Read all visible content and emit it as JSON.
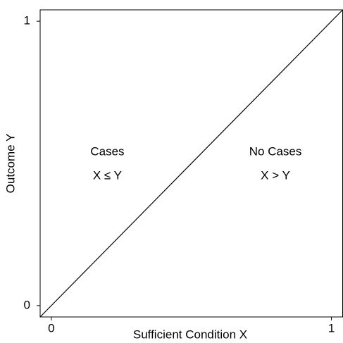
{
  "chart_data": {
    "type": "line",
    "x_label": "Sufficient Condition X",
    "y_label": "Outcome Y",
    "x": [
      -0.04,
      1.04
    ],
    "series": [
      {
        "color": "#000000",
        "values": [
          -0.04,
          1.04
        ]
      }
    ],
    "xlim": [
      -0.04,
      1.04
    ],
    "xticks": [
      0,
      1
    ],
    "ylim": [
      -0.04,
      1.04
    ],
    "yticks": [
      0,
      1
    ],
    "annotations": [
      {
        "text": "Cases",
        "x": 0.2,
        "y": 0.54
      },
      {
        "text": "X ≤ Y",
        "x": 0.2,
        "y": 0.455
      },
      {
        "text": "No Cases",
        "x": 0.8,
        "y": 0.54
      },
      {
        "text": "X > Y",
        "x": 0.8,
        "y": 0.455
      }
    ]
  }
}
